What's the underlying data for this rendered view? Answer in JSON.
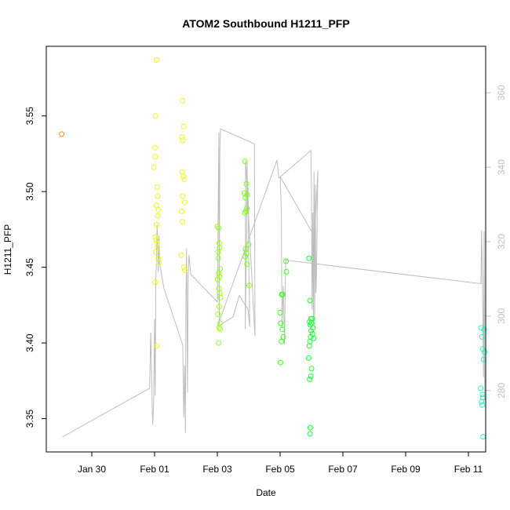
{
  "chart_data": {
    "type": "scatter",
    "title": "ATOM2 Southbound H1211_PFP",
    "xlabel": "Date",
    "ylabel": "H1211_PFP",
    "x_ticks": [
      "Jan 30",
      "Feb 01",
      "Feb 03",
      "Feb 05",
      "Feb 07",
      "Feb 09",
      "Feb 11"
    ],
    "x_tick_days": [
      30,
      32,
      34,
      36,
      38,
      40,
      42
    ],
    "xlim": [
      28.55,
      42.55
    ],
    "ylim": [
      3.328,
      3.596
    ],
    "y_ticks": [
      3.35,
      3.4,
      3.45,
      3.5,
      3.55
    ],
    "y_tick_labels": [
      "3.35",
      "3.40",
      "3.45",
      "3.50",
      "3.55"
    ],
    "y2_ticks": [
      280,
      300,
      320,
      340,
      360
    ],
    "y2_tick_labels": [
      "280",
      "300",
      "320",
      "340",
      "360"
    ],
    "y2lim": [
      263.5,
      372.5
    ],
    "line_color": "#bdbdbd",
    "right_axis_color": "#c0c0c0",
    "series": [
      {
        "color": "#ff8c1a",
        "points": [
          [
            29.04,
            3.538
          ]
        ]
      },
      {
        "color": "#e6ff1a",
        "points": [
          [
            32.06,
            3.587
          ],
          [
            32.03,
            3.55
          ],
          [
            32.01,
            3.529
          ],
          [
            32.02,
            3.523
          ],
          [
            31.98,
            3.516
          ],
          [
            32.08,
            3.503
          ],
          [
            32.1,
            3.497
          ],
          [
            32.05,
            3.491
          ],
          [
            32.12,
            3.488
          ],
          [
            32.1,
            3.484
          ],
          [
            32.06,
            3.478
          ],
          [
            32.02,
            3.47
          ],
          [
            32.04,
            3.468
          ],
          [
            32.07,
            3.466
          ],
          [
            32.09,
            3.463
          ],
          [
            32.04,
            3.46
          ],
          [
            32.12,
            3.456
          ],
          [
            32.14,
            3.453
          ],
          [
            32.02,
            3.44
          ],
          [
            32.07,
            3.398
          ],
          [
            32.89,
            3.56
          ],
          [
            32.93,
            3.543
          ],
          [
            32.87,
            3.536
          ],
          [
            32.9,
            3.534
          ],
          [
            32.88,
            3.513
          ],
          [
            32.91,
            3.51
          ],
          [
            32.95,
            3.508
          ],
          [
            32.9,
            3.497
          ],
          [
            32.96,
            3.493
          ],
          [
            32.86,
            3.487
          ],
          [
            32.89,
            3.48
          ],
          [
            32.85,
            3.458
          ],
          [
            32.93,
            3.45
          ],
          [
            32.96,
            3.448
          ]
        ]
      },
      {
        "color": "#99ff1a",
        "points": [
          [
            34.0,
            3.477
          ],
          [
            34.04,
            3.476
          ],
          [
            34.06,
            3.466
          ],
          [
            34.07,
            3.463
          ],
          [
            34.02,
            3.46
          ],
          [
            34.03,
            3.456
          ],
          [
            34.09,
            3.449
          ],
          [
            34.04,
            3.446
          ],
          [
            34.07,
            3.444
          ],
          [
            34.01,
            3.442
          ],
          [
            34.05,
            3.436
          ],
          [
            34.08,
            3.433
          ],
          [
            34.1,
            3.43
          ],
          [
            34.06,
            3.424
          ],
          [
            34.02,
            3.419
          ],
          [
            34.08,
            3.413
          ],
          [
            34.06,
            3.41
          ],
          [
            34.09,
            3.409
          ],
          [
            34.04,
            3.4
          ]
        ]
      },
      {
        "color": "#7cff1a",
        "points": [
          [
            34.88,
            3.52
          ],
          [
            34.92,
            3.505
          ],
          [
            34.86,
            3.499
          ],
          [
            34.95,
            3.498
          ],
          [
            34.89,
            3.496
          ],
          [
            34.94,
            3.489
          ],
          [
            34.91,
            3.487
          ],
          [
            34.87,
            3.486
          ],
          [
            35.0,
            3.465
          ],
          [
            34.9,
            3.462
          ],
          [
            34.93,
            3.459
          ],
          [
            34.89,
            3.457
          ],
          [
            34.95,
            3.452
          ],
          [
            35.01,
            3.438
          ]
        ]
      },
      {
        "color": "#3dff1a",
        "points": [
          [
            36.0,
            3.42
          ],
          [
            36.02,
            3.413
          ],
          [
            36.05,
            3.432
          ],
          [
            36.08,
            3.432
          ],
          [
            36.07,
            3.409
          ],
          [
            36.1,
            3.404
          ],
          [
            36.04,
            3.401
          ],
          [
            36.01,
            3.387
          ],
          [
            36.19,
            3.454
          ],
          [
            36.2,
            3.447
          ]
        ]
      },
      {
        "color": "#1aff3a",
        "points": [
          [
            36.92,
            3.456
          ],
          [
            36.95,
            3.428
          ],
          [
            36.98,
            3.416
          ],
          [
            37.02,
            3.416
          ],
          [
            36.94,
            3.414
          ],
          [
            37.0,
            3.413
          ],
          [
            36.96,
            3.412
          ],
          [
            37.05,
            3.41
          ],
          [
            36.99,
            3.408
          ],
          [
            37.03,
            3.406
          ],
          [
            36.97,
            3.404
          ],
          [
            37.07,
            3.403
          ],
          [
            36.95,
            3.401
          ],
          [
            36.93,
            3.398
          ],
          [
            36.91,
            3.39
          ],
          [
            37.0,
            3.383
          ],
          [
            36.98,
            3.378
          ],
          [
            36.94,
            3.376
          ],
          [
            36.96,
            3.344
          ],
          [
            36.95,
            3.34
          ]
        ]
      },
      {
        "color": "#1affb0",
        "points": [
          [
            42.4,
            3.41
          ],
          [
            42.5,
            3.409
          ],
          [
            42.43,
            3.404
          ],
          [
            42.45,
            3.396
          ],
          [
            42.51,
            3.394
          ],
          [
            42.48,
            3.389
          ],
          [
            42.39,
            3.37
          ],
          [
            42.45,
            3.366
          ],
          [
            42.46,
            3.364
          ],
          [
            42.42,
            3.361
          ],
          [
            42.44,
            3.359
          ],
          [
            42.47,
            3.338
          ]
        ]
      }
    ],
    "line_path": [
      [
        29.06,
        267.5
      ],
      [
        31.84,
        280.6
      ],
      [
        31.88,
        295.6
      ],
      [
        31.9,
        285
      ],
      [
        31.94,
        270.8
      ],
      [
        31.97,
        276.4
      ],
      [
        32.0,
        299.2
      ],
      [
        32.02,
        278.6
      ],
      [
        32.04,
        310.2
      ],
      [
        32.06,
        314.3
      ],
      [
        32.08,
        324.6
      ],
      [
        32.1,
        318.4
      ],
      [
        32.12,
        311.8
      ],
      [
        32.14,
        321.6
      ],
      [
        32.16,
        314.4
      ],
      [
        32.3,
        307.4
      ],
      [
        32.9,
        292.2
      ],
      [
        32.93,
        272.8
      ],
      [
        32.96,
        286.7
      ],
      [
        32.98,
        268.6
      ],
      [
        33.0,
        303.8
      ],
      [
        33.02,
        318.2
      ],
      [
        33.05,
        279.4
      ],
      [
        33.07,
        311.3
      ],
      [
        33.1,
        316.4
      ],
      [
        33.15,
        311.3
      ],
      [
        34.0,
        303.8
      ],
      [
        34.05,
        349.4
      ],
      [
        34.06,
        297.7
      ],
      [
        34.08,
        344
      ],
      [
        34.1,
        350.3
      ],
      [
        35.18,
        346.3
      ],
      [
        35.2,
        294.6
      ],
      [
        34.9,
        341.9
      ],
      [
        34.89,
        296.5
      ],
      [
        34.93,
        321.3
      ],
      [
        34.95,
        341.9
      ],
      [
        34.96,
        327.4
      ],
      [
        34.98,
        334.6
      ],
      [
        35.0,
        313.5
      ],
      [
        35.02,
        306.1
      ],
      [
        35.03,
        297.1
      ],
      [
        34.98,
        301.8
      ],
      [
        34.7,
        305.5
      ],
      [
        34.5,
        299.8
      ],
      [
        34.0,
        297.1
      ],
      [
        35.9,
        341.9
      ],
      [
        35.96,
        337.1
      ],
      [
        36.98,
        344.5
      ],
      [
        37.0,
        333.2
      ],
      [
        37.02,
        301.7
      ],
      [
        37.04,
        327.8
      ],
      [
        37.06,
        298.5
      ],
      [
        37.08,
        338.9
      ],
      [
        37.1,
        296.8
      ],
      [
        37.12,
        335.3
      ],
      [
        37.14,
        306.2
      ],
      [
        37.16,
        311.2
      ],
      [
        37.2,
        339
      ],
      [
        37.1,
        321.3
      ],
      [
        36.0,
        337.5
      ],
      [
        36.04,
        328.3
      ],
      [
        36.06,
        296.8
      ],
      [
        36.1,
        308.1
      ],
      [
        36.14,
        292.4
      ],
      [
        36.18,
        315.5
      ],
      [
        36.2,
        315
      ],
      [
        42.4,
        308.7
      ],
      [
        42.42,
        323.1
      ],
      [
        42.45,
        307.5
      ],
      [
        42.48,
        283.6
      ],
      [
        42.5,
        322.8
      ],
      [
        42.52,
        277.3
      ]
    ]
  }
}
